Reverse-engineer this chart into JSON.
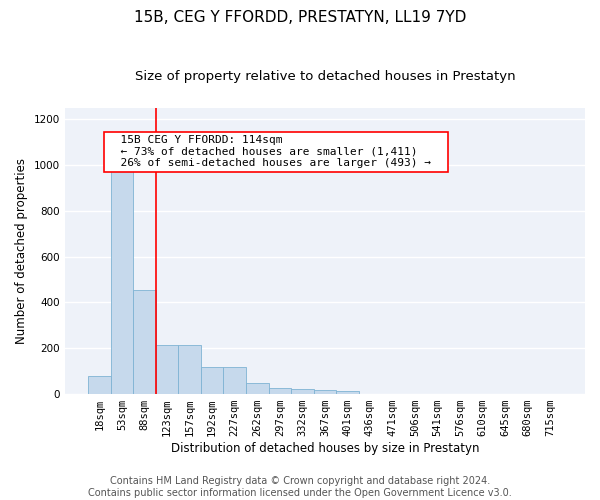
{
  "title": "15B, CEG Y FFORDD, PRESTATYN, LL19 7YD",
  "subtitle": "Size of property relative to detached houses in Prestatyn",
  "xlabel": "Distribution of detached houses by size in Prestatyn",
  "ylabel": "Number of detached properties",
  "bar_color": "#c6d9ec",
  "bar_edge_color": "#7fb3d3",
  "categories": [
    "18sqm",
    "53sqm",
    "88sqm",
    "123sqm",
    "157sqm",
    "192sqm",
    "227sqm",
    "262sqm",
    "297sqm",
    "332sqm",
    "367sqm",
    "401sqm",
    "436sqm",
    "471sqm",
    "506sqm",
    "541sqm",
    "576sqm",
    "610sqm",
    "645sqm",
    "680sqm",
    "715sqm"
  ],
  "values": [
    80,
    975,
    455,
    215,
    215,
    120,
    120,
    47,
    25,
    22,
    20,
    13,
    0,
    0,
    0,
    0,
    0,
    0,
    0,
    0,
    0
  ],
  "ylim": [
    0,
    1250
  ],
  "yticks": [
    0,
    200,
    400,
    600,
    800,
    1000,
    1200
  ],
  "property_line_x": 2.5,
  "annotation_text": "  15B CEG Y FFORDD: 114sqm  \n  ← 73% of detached houses are smaller (1,411)  \n  26% of semi-detached houses are larger (493) →  ",
  "footer": "Contains HM Land Registry data © Crown copyright and database right 2024.\nContains public sector information licensed under the Open Government Licence v3.0.",
  "background_color": "#eef2f9",
  "grid_color": "#ffffff",
  "title_fontsize": 11,
  "subtitle_fontsize": 9.5,
  "axis_label_fontsize": 8.5,
  "tick_fontsize": 7.5,
  "annotation_fontsize": 8,
  "footer_fontsize": 7
}
